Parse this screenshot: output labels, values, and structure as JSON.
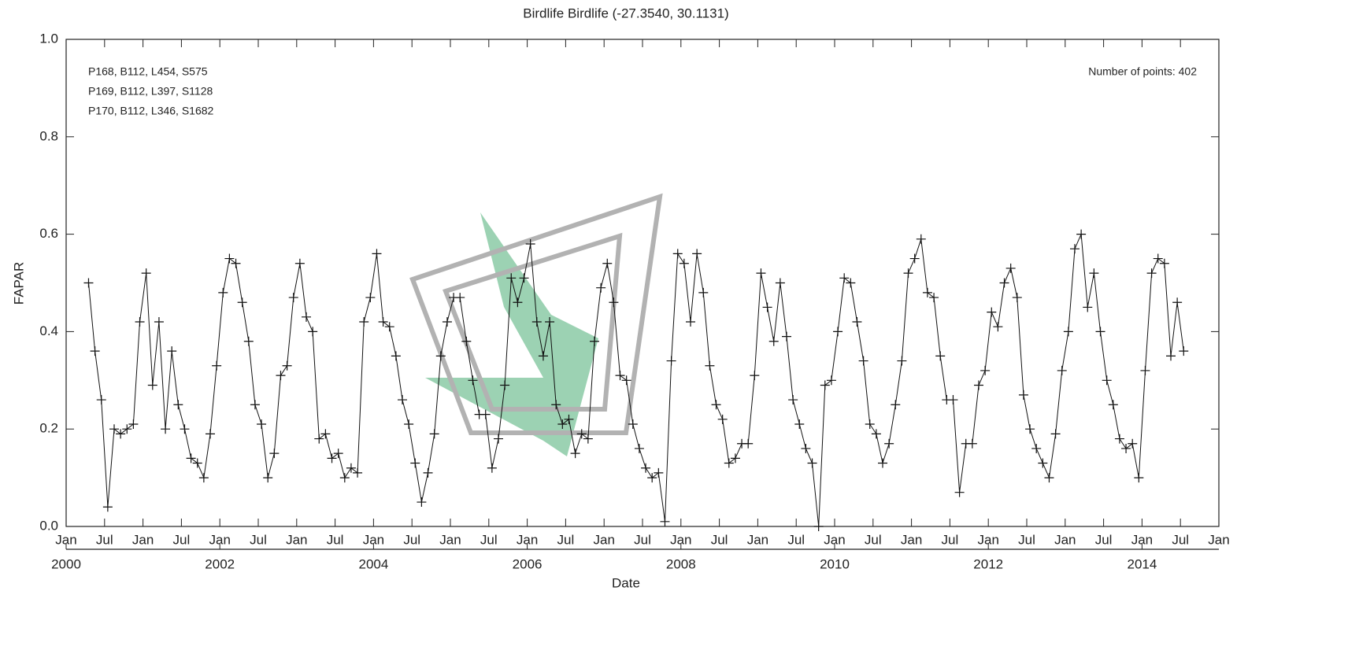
{
  "chart_data": {
    "type": "line",
    "title": "Birdlife Birdlife (-27.3540, 30.1131)",
    "x_label": "Date",
    "y_label": "FAPAR",
    "annotations": [
      "P168, B112, L454, S575",
      "P169, B112, L397, S1128",
      "P170, B112, L346, S1682"
    ],
    "points_note": "Number of points: 402",
    "xlim": [
      "2000-01",
      "2015-01"
    ],
    "ylim": [
      0,
      1
    ],
    "yticks": [
      {
        "value": 0,
        "label": "0.0"
      },
      0.2,
      0.4,
      0.6,
      0.8,
      {
        "value": 1,
        "label": "1.0"
      }
    ],
    "xticks": [
      {
        "value": "2000-01",
        "label": "Jan"
      },
      {
        "value": "2000-07",
        "label": "Jul"
      },
      {
        "value": "2001-01",
        "label": "Jan"
      },
      {
        "value": "2001-07",
        "label": "Jul"
      },
      {
        "value": "2002-01",
        "label": "Jan"
      },
      {
        "value": "2002-07",
        "label": "Jul"
      },
      {
        "value": "2003-01",
        "label": "Jan"
      },
      {
        "value": "2003-07",
        "label": "Jul"
      },
      {
        "value": "2004-01",
        "label": "Jan"
      },
      {
        "value": "2004-07",
        "label": "Jul"
      },
      {
        "value": "2005-01",
        "label": "Jan"
      },
      {
        "value": "2005-07",
        "label": "Jul"
      },
      {
        "value": "2006-01",
        "label": "Jan"
      },
      {
        "value": "2006-07",
        "label": "Jul"
      },
      {
        "value": "2007-01",
        "label": "Jan"
      },
      {
        "value": "2007-07",
        "label": "Jul"
      },
      {
        "value": "2008-01",
        "label": "Jan"
      },
      {
        "value": "2008-07",
        "label": "Jul"
      },
      {
        "value": "2009-01",
        "label": "Jan"
      },
      {
        "value": "2009-07",
        "label": "Jul"
      },
      {
        "value": "2010-01",
        "label": "Jan"
      },
      {
        "value": "2010-07",
        "label": "Jul"
      },
      {
        "value": "2011-01",
        "label": "Jan"
      },
      {
        "value": "2011-07",
        "label": "Jul"
      },
      {
        "value": "2012-01",
        "label": "Jan"
      },
      {
        "value": "2012-07",
        "label": "Jul"
      },
      {
        "value": "2013-01",
        "label": "Jan"
      },
      {
        "value": "2013-07",
        "label": "Jul"
      },
      {
        "value": "2014-01",
        "label": "Jan"
      },
      {
        "value": "2014-07",
        "label": "Jul"
      },
      {
        "value": "2015-01",
        "label": "Jan"
      }
    ],
    "year_ticks": [
      {
        "value": "2000-01",
        "label": "2000"
      },
      {
        "value": "2002-01",
        "label": "2002"
      },
      {
        "value": "2004-01",
        "label": "2004"
      },
      {
        "value": "2006-01",
        "label": "2006"
      },
      {
        "value": "2008-01",
        "label": "2008"
      },
      {
        "value": "2010-01",
        "label": "2010"
      },
      {
        "value": "2012-01",
        "label": "2012"
      },
      {
        "value": "2014-01",
        "label": "2014"
      }
    ],
    "series": [
      {
        "color": "#111111",
        "x": [
          "2000-04",
          "2000-05",
          "2000-06",
          "2000-07",
          "2000-08",
          "2000-09",
          "2000-10",
          "2000-11",
          "2000-12",
          "2001-01",
          "2001-02",
          "2001-03",
          "2001-04",
          "2001-05",
          "2001-06",
          "2001-07",
          "2001-08",
          "2001-09",
          "2001-10",
          "2001-11",
          "2001-12",
          "2002-01",
          "2002-02",
          "2002-03",
          "2002-04",
          "2002-05",
          "2002-06",
          "2002-07",
          "2002-08",
          "2002-09",
          "2002-10",
          "2002-11",
          "2002-12",
          "2003-01",
          "2003-02",
          "2003-03",
          "2003-04",
          "2003-05",
          "2003-06",
          "2003-07",
          "2003-08",
          "2003-09",
          "2003-10",
          "2003-11",
          "2003-12",
          "2004-01",
          "2004-02",
          "2004-03",
          "2004-04",
          "2004-05",
          "2004-06",
          "2004-07",
          "2004-08",
          "2004-09",
          "2004-10",
          "2004-11",
          "2004-12",
          "2005-01",
          "2005-02",
          "2005-03",
          "2005-04",
          "2005-05",
          "2005-06",
          "2005-07",
          "2005-08",
          "2005-09",
          "2005-10",
          "2005-11",
          "2005-12",
          "2006-01",
          "2006-02",
          "2006-03",
          "2006-04",
          "2006-05",
          "2006-06",
          "2006-07",
          "2006-08",
          "2006-09",
          "2006-10",
          "2006-11",
          "2006-12",
          "2007-01",
          "2007-02",
          "2007-03",
          "2007-04",
          "2007-05",
          "2007-06",
          "2007-07",
          "2007-08",
          "2007-09",
          "2007-10",
          "2007-11",
          "2007-12",
          "2008-01",
          "2008-02",
          "2008-03",
          "2008-04",
          "2008-05",
          "2008-06",
          "2008-07",
          "2008-08",
          "2008-09",
          "2008-10",
          "2008-11",
          "2008-12",
          "2009-01",
          "2009-02",
          "2009-03",
          "2009-04",
          "2009-05",
          "2009-06",
          "2009-07",
          "2009-08",
          "2009-09",
          "2009-10",
          "2009-11",
          "2009-12",
          "2010-01",
          "2010-02",
          "2010-03",
          "2010-04",
          "2010-05",
          "2010-06",
          "2010-07",
          "2010-08",
          "2010-09",
          "2010-10",
          "2010-11",
          "2010-12",
          "2011-01",
          "2011-02",
          "2011-03",
          "2011-04",
          "2011-05",
          "2011-06",
          "2011-07",
          "2011-08",
          "2011-09",
          "2011-10",
          "2011-11",
          "2011-12",
          "2012-01",
          "2012-02",
          "2012-03",
          "2012-04",
          "2012-05",
          "2012-06",
          "2012-07",
          "2012-08",
          "2012-09",
          "2012-10",
          "2012-11",
          "2012-12",
          "2013-01",
          "2013-02",
          "2013-03",
          "2013-04",
          "2013-05",
          "2013-06",
          "2013-07",
          "2013-08",
          "2013-09",
          "2013-10",
          "2013-11",
          "2013-12",
          "2014-01",
          "2014-02",
          "2014-03",
          "2014-04",
          "2014-05",
          "2014-06",
          "2014-07"
        ],
        "values": [
          0.5,
          0.36,
          0.26,
          0.04,
          0.2,
          0.19,
          0.2,
          0.21,
          0.42,
          0.52,
          0.29,
          0.42,
          0.2,
          0.36,
          0.25,
          0.2,
          0.14,
          0.13,
          0.1,
          0.19,
          0.33,
          0.48,
          0.55,
          0.54,
          0.46,
          0.38,
          0.25,
          0.21,
          0.1,
          0.15,
          0.31,
          0.33,
          0.47,
          0.54,
          0.43,
          0.4,
          0.18,
          0.19,
          0.14,
          0.15,
          0.1,
          0.12,
          0.11,
          0.42,
          0.47,
          0.56,
          0.42,
          0.41,
          0.35,
          0.26,
          0.21,
          0.13,
          0.05,
          0.11,
          0.19,
          0.35,
          0.42,
          0.47,
          0.47,
          0.38,
          0.3,
          0.23,
          0.23,
          0.12,
          0.18,
          0.29,
          0.51,
          0.46,
          0.51,
          0.58,
          0.42,
          0.35,
          0.42,
          0.25,
          0.21,
          0.22,
          0.15,
          0.19,
          0.18,
          0.38,
          0.49,
          0.54,
          0.46,
          0.31,
          0.3,
          0.21,
          0.16,
          0.12,
          0.1,
          0.11,
          0.01,
          0.34,
          0.56,
          0.54,
          0.42,
          0.56,
          0.48,
          0.33,
          0.25,
          0.22,
          0.13,
          0.14,
          0.17,
          0.17,
          0.31,
          0.52,
          0.45,
          0.38,
          0.5,
          0.39,
          0.26,
          0.21,
          0.16,
          0.13,
          0.0,
          0.29,
          0.3,
          0.4,
          0.51,
          0.5,
          0.42,
          0.34,
          0.21,
          0.19,
          0.13,
          0.17,
          0.25,
          0.34,
          0.52,
          0.55,
          0.59,
          0.48,
          0.47,
          0.35,
          0.26,
          0.26,
          0.07,
          0.17,
          0.17,
          0.29,
          0.32,
          0.44,
          0.41,
          0.5,
          0.53,
          0.47,
          0.27,
          0.2,
          0.16,
          0.13,
          0.1,
          0.19,
          0.32,
          0.4,
          0.57,
          0.6,
          0.45,
          0.52,
          0.4,
          0.3,
          0.25,
          0.18,
          0.16,
          0.17,
          0.1,
          0.32,
          0.52,
          0.55,
          0.54,
          0.35,
          0.46,
          0.36
        ]
      }
    ]
  }
}
